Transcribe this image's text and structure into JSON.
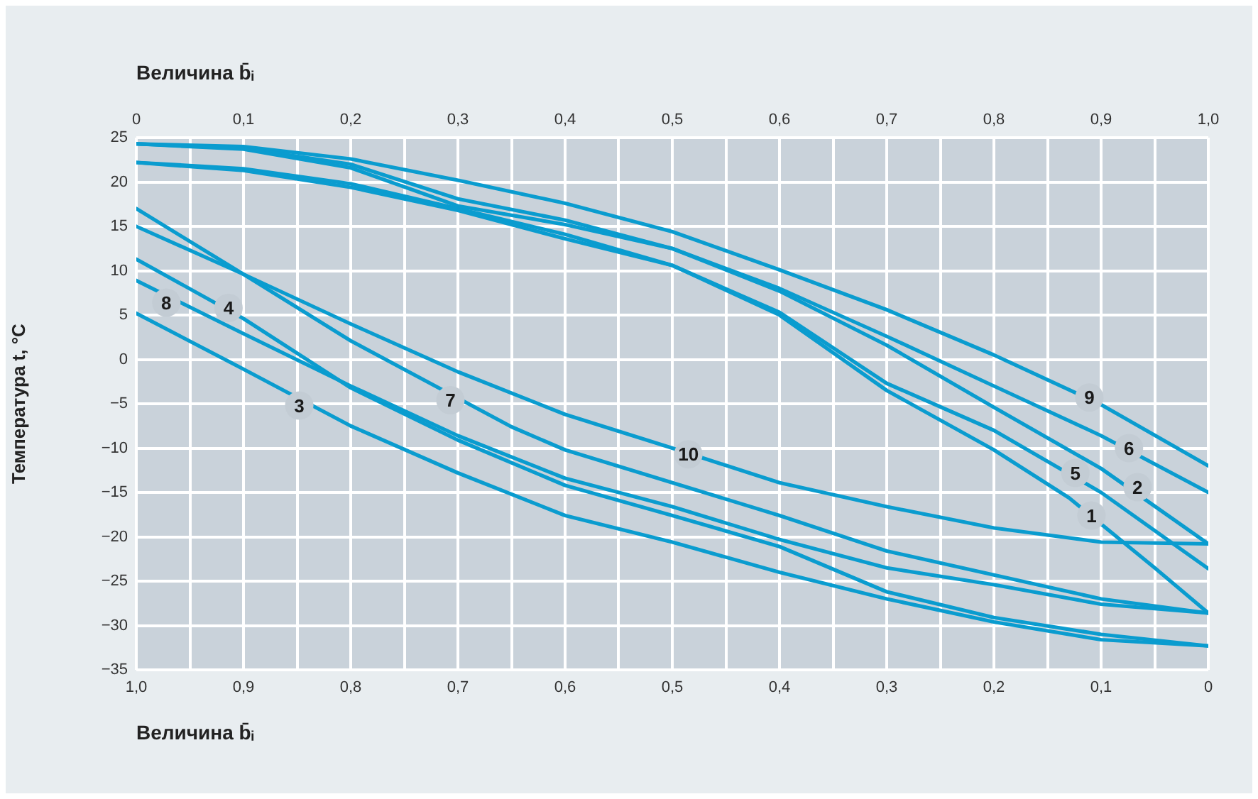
{
  "chart_data": {
    "type": "line",
    "xlabel": "Величина b̄ᵢ",
    "x2label": "Величина b̄ᵢ",
    "ylabel": "Температура t, °C",
    "xlim": [
      1,
      0
    ],
    "x2lim": [
      0,
      1
    ],
    "ylim": [
      -35,
      25
    ],
    "xticks": [
      {
        "value": 1,
        "label": "1,0"
      },
      {
        "value": 0.95,
        "label": null
      },
      {
        "value": 0.9,
        "label": "0,9"
      },
      {
        "value": 0.85,
        "label": null
      },
      {
        "value": 0.8,
        "label": "0,8"
      },
      {
        "value": 0.75,
        "label": null
      },
      {
        "value": 0.7,
        "label": "0,7"
      },
      {
        "value": 0.65,
        "label": null
      },
      {
        "value": 0.6,
        "label": "0,6"
      },
      {
        "value": 0.55,
        "label": null
      },
      {
        "value": 0.5,
        "label": "0,5"
      },
      {
        "value": 0.45,
        "label": null
      },
      {
        "value": 0.4,
        "label": "0,4"
      },
      {
        "value": 0.35,
        "label": null
      },
      {
        "value": 0.3,
        "label": "0,3"
      },
      {
        "value": 0.25,
        "label": null
      },
      {
        "value": 0.2,
        "label": "0,2"
      },
      {
        "value": 0.15,
        "label": null
      },
      {
        "value": 0.1,
        "label": "0,1"
      },
      {
        "value": 0.05,
        "label": null
      },
      {
        "value": 0,
        "label": "0"
      }
    ],
    "x2ticks": [
      {
        "value": 0,
        "label": "0"
      },
      {
        "value": 0.05,
        "label": null
      },
      {
        "value": 0.1,
        "label": "0,1"
      },
      {
        "value": 0.15,
        "label": null
      },
      {
        "value": 0.2,
        "label": "0,2"
      },
      {
        "value": 0.25,
        "label": null
      },
      {
        "value": 0.3,
        "label": "0,3"
      },
      {
        "value": 0.35,
        "label": null
      },
      {
        "value": 0.4,
        "label": "0,4"
      },
      {
        "value": 0.45,
        "label": null
      },
      {
        "value": 0.5,
        "label": "0,5"
      },
      {
        "value": 0.55,
        "label": null
      },
      {
        "value": 0.6,
        "label": "0,6"
      },
      {
        "value": 0.65,
        "label": null
      },
      {
        "value": 0.7,
        "label": "0,7"
      },
      {
        "value": 0.75,
        "label": null
      },
      {
        "value": 0.8,
        "label": "0,8"
      },
      {
        "value": 0.85,
        "label": null
      },
      {
        "value": 0.9,
        "label": "0,9"
      },
      {
        "value": 0.95,
        "label": null
      },
      {
        "value": 1,
        "label": "1,0"
      }
    ],
    "yticks": [
      {
        "value": -35,
        "label": "−35"
      },
      {
        "value": -30,
        "label": "−30"
      },
      {
        "value": -25,
        "label": "−25"
      },
      {
        "value": -20,
        "label": "−20"
      },
      {
        "value": -15,
        "label": "−15"
      },
      {
        "value": -10,
        "label": "−10"
      },
      {
        "value": -5,
        "label": "−5"
      },
      0,
      5,
      10,
      15,
      20,
      25
    ],
    "grid": true,
    "legend": false,
    "marker": "none",
    "line_style": "solid",
    "series": [
      {
        "axis": "x2",
        "color": "#0a9ccf",
        "x": [
          0,
          0.1,
          0.2,
          0.3,
          0.4,
          0.5,
          0.6,
          0.7,
          0.8,
          0.87,
          0.95,
          1
        ],
        "values": [
          22.2,
          21.3,
          19.4,
          16.8,
          13.6,
          10.6,
          5.0,
          -3.5,
          -10.2,
          -15.6,
          -23.5,
          -28.6
        ]
      },
      {
        "axis": "x2",
        "color": "#0a9ccf",
        "x": [
          0,
          0.1,
          0.2,
          0.3,
          0.4,
          0.5,
          0.6,
          0.7,
          0.8,
          0.9,
          1
        ],
        "values": [
          24.3,
          23.7,
          21.6,
          17.3,
          15.2,
          12.5,
          7.7,
          1.6,
          -5.4,
          -12.3,
          -20.8
        ]
      },
      {
        "color": "#0a9ccf",
        "x": [
          1,
          0.9,
          0.8,
          0.7,
          0.6,
          0.5,
          0.4,
          0.3,
          0.2,
          0.1,
          0
        ],
        "values": [
          5.2,
          -1.1,
          -7.5,
          -12.8,
          -17.6,
          -20.6,
          -24.0,
          -27.0,
          -29.6,
          -31.6,
          -32.3
        ]
      },
      {
        "color": "#0a9ccf",
        "x": [
          1,
          0.9,
          0.8,
          0.7,
          0.6,
          0.5,
          0.4,
          0.3,
          0.2,
          0.1,
          0
        ],
        "values": [
          11.3,
          4.6,
          -3.2,
          -9.1,
          -14.2,
          -17.6,
          -21.1,
          -26.2,
          -29.1,
          -31.0,
          -32.3
        ]
      },
      {
        "axis": "x2",
        "color": "#0a9ccf",
        "x": [
          0,
          0.1,
          0.2,
          0.3,
          0.4,
          0.5,
          0.6,
          0.7,
          0.8,
          0.9,
          1
        ],
        "values": [
          22.2,
          21.5,
          19.8,
          17.0,
          14.1,
          10.6,
          5.3,
          -2.7,
          -8.0,
          -15.0,
          -23.6
        ]
      },
      {
        "axis": "x2",
        "color": "#0a9ccf",
        "x": [
          0,
          0.1,
          0.2,
          0.3,
          0.4,
          0.5,
          0.6,
          0.7,
          0.8,
          0.9,
          1
        ],
        "values": [
          24.3,
          23.8,
          22.0,
          18.1,
          15.7,
          12.5,
          8.0,
          2.6,
          -3.0,
          -8.6,
          -15.0
        ]
      },
      {
        "color": "#0a9ccf",
        "x": [
          1,
          0.9,
          0.8,
          0.65,
          0.6,
          0.5,
          0.4,
          0.3,
          0.2,
          0.1,
          0
        ],
        "values": [
          17.0,
          9.6,
          2.1,
          -7.6,
          -10.2,
          -13.9,
          -17.6,
          -21.6,
          -24.3,
          -27.0,
          -28.6
        ]
      },
      {
        "color": "#0a9ccf",
        "x": [
          1,
          0.9,
          0.8,
          0.7,
          0.6,
          0.5,
          0.4,
          0.3,
          0.2,
          0.1,
          0
        ],
        "values": [
          8.9,
          2.9,
          -3.0,
          -8.6,
          -13.4,
          -16.6,
          -20.3,
          -23.5,
          -25.4,
          -27.6,
          -28.6
        ]
      },
      {
        "axis": "x2",
        "color": "#0a9ccf",
        "x": [
          0,
          0.1,
          0.2,
          0.3,
          0.4,
          0.5,
          0.6,
          0.7,
          0.8,
          0.9,
          1
        ],
        "values": [
          24.3,
          24.0,
          22.6,
          20.2,
          17.6,
          14.4,
          10.1,
          5.6,
          0.5,
          -5.1,
          -12.0
        ]
      },
      {
        "color": "#0a9ccf",
        "x": [
          1,
          0.9,
          0.8,
          0.7,
          0.6,
          0.5,
          0.4,
          0.3,
          0.2,
          0.1,
          0
        ],
        "values": [
          15.0,
          9.6,
          4.0,
          -1.4,
          -6.2,
          -10.0,
          -13.9,
          -16.6,
          -19.0,
          -20.6,
          -20.8
        ]
      }
    ],
    "annotations": [
      {
        "text": "1",
        "x": 0.109,
        "y": -17.6
      },
      {
        "text": "2",
        "x": 0.066,
        "y": -14.4
      },
      {
        "text": "3",
        "x": 0.848,
        "y": -5.2
      },
      {
        "text": "4",
        "x": 0.914,
        "y": 5.8
      },
      {
        "text": "5",
        "x": 0.124,
        "y": -12.8
      },
      {
        "text": "6",
        "x": 0.074,
        "y": -10
      },
      {
        "text": "7",
        "x": 0.707,
        "y": -4.6
      },
      {
        "text": "8",
        "x": 0.972,
        "y": 6.4
      },
      {
        "text": "9",
        "x": 0.111,
        "y": -4.3
      },
      {
        "text": "10",
        "x": 0.485,
        "y": -10.7
      }
    ]
  }
}
